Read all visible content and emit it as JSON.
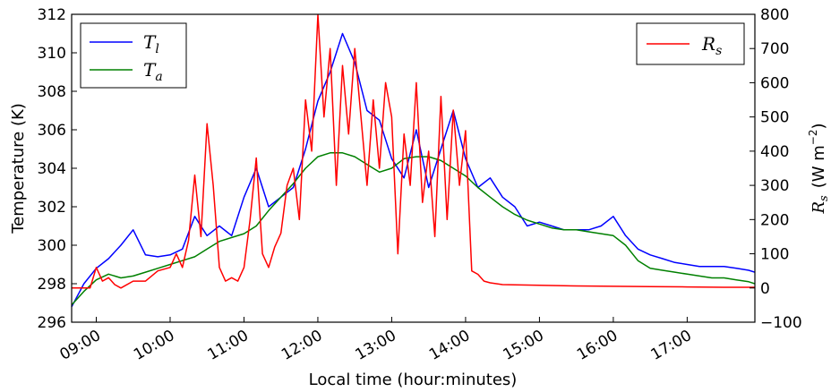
{
  "chart_data": {
    "type": "line",
    "xlabel": "Local time (hour:minutes)",
    "ylabel_left": "Temperature (K)",
    "ylabel_right": "R_s (W m^-2)",
    "ylabel_right_parts": {
      "symbol": "R",
      "sub": "s",
      "unit_open": "(W m",
      "exp": "−2",
      "unit_close": ")"
    },
    "xlim": [
      "08:40",
      "17:55"
    ],
    "ylim_left": [
      296,
      312
    ],
    "ylim_right": [
      -100,
      800
    ],
    "x_ticks": [
      "09:00",
      "10:00",
      "11:00",
      "12:00",
      "13:00",
      "14:00",
      "15:00",
      "16:00",
      "17:00"
    ],
    "y_ticks_left": [
      "296",
      "298",
      "300",
      "302",
      "304",
      "306",
      "308",
      "310",
      "312"
    ],
    "y_ticks_right": [
      "−100",
      "0",
      "100",
      "200",
      "300",
      "400",
      "500",
      "600",
      "700",
      "800"
    ],
    "grid": false,
    "legend_left": {
      "placement": "upper-left",
      "entries": [
        {
          "symbol": "T",
          "sub": "l",
          "color": "#0000ff"
        },
        {
          "symbol": "T",
          "sub": "a",
          "color": "#008000"
        }
      ]
    },
    "legend_right": {
      "placement": "upper-right",
      "entries": [
        {
          "symbol": "R",
          "sub": "s",
          "color": "#ff0000"
        }
      ]
    },
    "series": [
      {
        "key": "T_l",
        "axis": "left",
        "color": "#0000ff",
        "x": [
          "08:40",
          "08:50",
          "09:00",
          "09:10",
          "09:20",
          "09:30",
          "09:40",
          "09:50",
          "10:00",
          "10:10",
          "10:20",
          "10:30",
          "10:40",
          "10:50",
          "11:00",
          "11:10",
          "11:20",
          "11:30",
          "11:40",
          "11:50",
          "12:00",
          "12:10",
          "12:20",
          "12:30",
          "12:40",
          "12:50",
          "13:00",
          "13:10",
          "13:20",
          "13:30",
          "13:40",
          "13:50",
          "14:00",
          "14:10",
          "14:20",
          "14:30",
          "14:40",
          "14:50",
          "15:00",
          "15:10",
          "15:20",
          "15:30",
          "15:40",
          "15:50",
          "16:00",
          "16:10",
          "16:20",
          "16:30",
          "16:40",
          "16:50",
          "17:00",
          "17:10",
          "17:20",
          "17:30",
          "17:40",
          "17:50",
          "17:55"
        ],
        "y": [
          296.8,
          298.0,
          298.8,
          299.3,
          300.0,
          300.8,
          299.5,
          299.4,
          299.5,
          299.8,
          301.5,
          300.5,
          301.0,
          300.5,
          302.5,
          304.0,
          302.0,
          302.5,
          303.0,
          305.0,
          307.5,
          309.0,
          311.0,
          309.5,
          307.0,
          306.5,
          304.5,
          303.5,
          306.0,
          303.0,
          305.0,
          307.0,
          304.5,
          303.0,
          303.5,
          302.5,
          302.0,
          301.0,
          301.2,
          301.0,
          300.8,
          300.8,
          300.8,
          301.0,
          301.5,
          300.5,
          299.8,
          299.5,
          299.3,
          299.1,
          299.0,
          298.9,
          298.9,
          298.9,
          298.8,
          298.7,
          298.6
        ]
      },
      {
        "key": "T_a",
        "axis": "left",
        "color": "#008000",
        "x": [
          "08:40",
          "08:50",
          "09:00",
          "09:10",
          "09:20",
          "09:30",
          "09:40",
          "09:50",
          "10:00",
          "10:10",
          "10:20",
          "10:30",
          "10:40",
          "10:50",
          "11:00",
          "11:10",
          "11:20",
          "11:30",
          "11:40",
          "11:50",
          "12:00",
          "12:10",
          "12:20",
          "12:30",
          "12:40",
          "12:50",
          "13:00",
          "13:10",
          "13:20",
          "13:30",
          "13:40",
          "13:50",
          "14:00",
          "14:10",
          "14:20",
          "14:30",
          "14:40",
          "14:50",
          "15:00",
          "15:10",
          "15:20",
          "15:30",
          "15:40",
          "15:50",
          "16:00",
          "16:10",
          "16:20",
          "16:30",
          "16:40",
          "16:50",
          "17:00",
          "17:10",
          "17:20",
          "17:30",
          "17:40",
          "17:50",
          "17:55"
        ],
        "y": [
          296.9,
          297.6,
          298.2,
          298.5,
          298.3,
          298.4,
          298.6,
          298.8,
          299.0,
          299.2,
          299.4,
          299.8,
          300.2,
          300.4,
          300.6,
          301.0,
          301.8,
          302.5,
          303.2,
          304.0,
          304.6,
          304.8,
          304.8,
          304.6,
          304.2,
          303.8,
          304.0,
          304.5,
          304.6,
          304.6,
          304.4,
          304.0,
          303.6,
          303.0,
          302.5,
          302.0,
          301.6,
          301.3,
          301.1,
          300.9,
          300.8,
          300.8,
          300.7,
          300.6,
          300.5,
          300.0,
          299.2,
          298.8,
          298.7,
          298.6,
          298.5,
          298.4,
          298.3,
          298.3,
          298.2,
          298.1,
          298.0
        ]
      },
      {
        "key": "R_s",
        "axis": "right",
        "color": "#ff0000",
        "x": [
          "08:40",
          "08:55",
          "09:00",
          "09:05",
          "09:10",
          "09:15",
          "09:20",
          "09:30",
          "09:40",
          "09:50",
          "10:00",
          "10:05",
          "10:10",
          "10:15",
          "10:20",
          "10:25",
          "10:30",
          "10:35",
          "10:40",
          "10:45",
          "10:50",
          "10:55",
          "11:00",
          "11:05",
          "11:10",
          "11:15",
          "11:20",
          "11:25",
          "11:30",
          "11:35",
          "11:40",
          "11:45",
          "11:50",
          "11:55",
          "12:00",
          "12:05",
          "12:10",
          "12:15",
          "12:20",
          "12:25",
          "12:30",
          "12:35",
          "12:40",
          "12:45",
          "12:50",
          "12:55",
          "13:00",
          "13:05",
          "13:10",
          "13:15",
          "13:20",
          "13:25",
          "13:30",
          "13:35",
          "13:40",
          "13:45",
          "13:50",
          "13:55",
          "14:00",
          "14:05",
          "14:10",
          "14:15",
          "14:20",
          "14:30",
          "15:00",
          "15:30",
          "16:00",
          "16:30",
          "17:00",
          "17:30",
          "17:55"
        ],
        "y": [
          0,
          0,
          60,
          20,
          30,
          10,
          0,
          20,
          20,
          50,
          60,
          100,
          60,
          140,
          330,
          150,
          480,
          300,
          60,
          20,
          30,
          20,
          60,
          200,
          380,
          100,
          60,
          120,
          160,
          300,
          350,
          200,
          550,
          400,
          800,
          500,
          700,
          300,
          650,
          450,
          700,
          500,
          300,
          550,
          350,
          600,
          500,
          100,
          450,
          300,
          600,
          250,
          400,
          150,
          560,
          200,
          520,
          300,
          460,
          50,
          40,
          20,
          15,
          10,
          8,
          6,
          5,
          4,
          3,
          2,
          2
        ]
      }
    ]
  }
}
